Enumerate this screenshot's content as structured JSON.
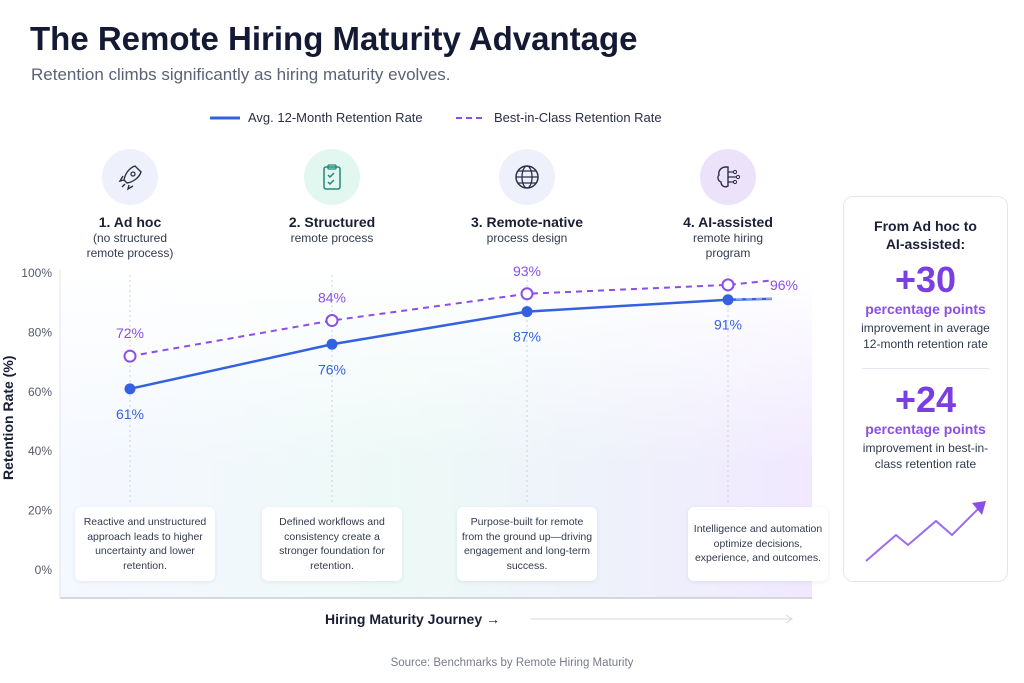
{
  "title": "The Remote Hiring Maturity Advantage",
  "subtitle": "Retention climbs significantly as hiring maturity evolves.",
  "colors": {
    "avg": "#3461e0",
    "best": "#8a4fe8",
    "title": "#141a33"
  },
  "chart_data": {
    "type": "line",
    "categories": [
      "1. Ad hoc",
      "2. Structured",
      "3. Remote-native",
      "4. AI-assisted"
    ],
    "series": [
      {
        "name": "Avg. 12-Month Retention Rate",
        "values": [
          61,
          76,
          87,
          91
        ],
        "labels": [
          "61%",
          "76%",
          "87%",
          "91%"
        ],
        "style": "solid"
      },
      {
        "name": "Best-in-Class Retention Rate",
        "values": [
          72,
          84,
          93,
          96
        ],
        "labels": [
          "72%",
          "84%",
          "93%",
          "96%"
        ],
        "style": "dashed"
      }
    ],
    "ylabel": "Retention Rate (%)",
    "xlabel": "Hiring Maturity Journey →",
    "ylim": [
      0,
      100
    ],
    "yticks": [
      "0%",
      "20%",
      "40%",
      "60%",
      "80%",
      "100%"
    ],
    "legend": "top"
  },
  "stages": [
    {
      "icon": "rocket-icon",
      "name": "1. Ad hoc",
      "sub": "(no structured remote process)",
      "desc": "Reactive and unstructured approach leads to higher uncertainty and lower retention."
    },
    {
      "icon": "clipboard-check-icon",
      "name": "2. Structured",
      "sub": "remote process",
      "desc": "Defined workflows and consistency create a stronger foundation for retention."
    },
    {
      "icon": "globe-icon",
      "name": "3. Remote-native",
      "sub": "process design",
      "desc": "Purpose-built for remote from the ground up—driving engagement and long-term success."
    },
    {
      "icon": "ai-brain-icon",
      "name": "4. AI-assisted",
      "sub": "remote hiring program",
      "desc": "Intelligence and automation optimize decisions, experience, and outcomes."
    }
  ],
  "side": {
    "heading": "From Ad hoc to AI-assisted:",
    "stat1": "+30",
    "unit1": "percentage points",
    "text1": "improvement in average 12-month retention rate",
    "stat2": "+24",
    "unit2": "percentage points",
    "text2": "improvement in best-in-class retention rate"
  },
  "source": "Source: Benchmarks by Remote Hiring Maturity"
}
